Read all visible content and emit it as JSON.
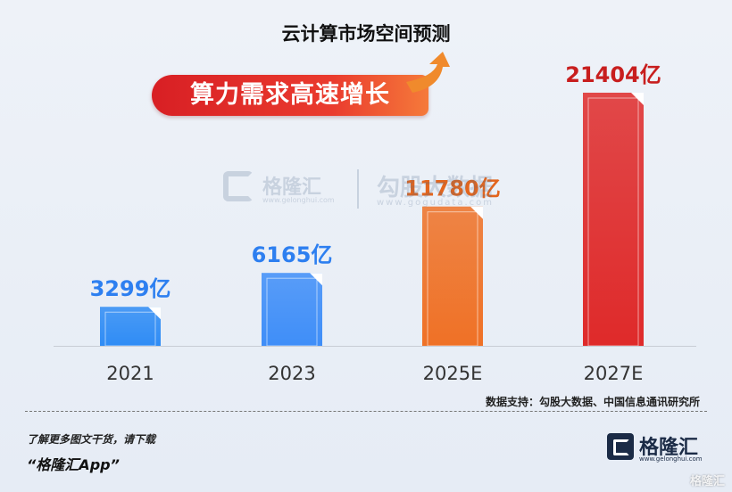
{
  "chart_data": {
    "type": "bar",
    "title": "云计算市场空间预测",
    "subtitle": "算力需求高速增长",
    "categories": [
      "2021",
      "2023",
      "2025E",
      "2027E"
    ],
    "values": [
      3299,
      6165,
      11780,
      21404
    ],
    "value_labels": [
      "3299亿",
      "6165亿",
      "11780亿",
      "21404亿"
    ],
    "unit": "亿",
    "ylim": [
      0,
      21404
    ],
    "grid": false,
    "colors": [
      "#2f8cf5",
      "#3f8ef8",
      "#ef7126",
      "#df2a2a"
    ],
    "label_colors": [
      "#2d7ff0",
      "#2d7ff0",
      "#e3651d",
      "#c81e1e"
    ]
  },
  "source": "数据支持：勾股大数据、中国信息通讯研究所",
  "watermark": {
    "brand_a": "格隆汇",
    "brand_a_url": "www.gelonghui.com",
    "brand_b": "勾股大数据",
    "brand_b_url": "www.gogudata.com"
  },
  "footer": {
    "promo_line": "了解更多图文干货，请下载",
    "app_line": "“格隆汇App”",
    "logo_text": "格隆汇",
    "logo_sub": "www.gelonghui.com",
    "corner_mark": "格隆汇"
  }
}
